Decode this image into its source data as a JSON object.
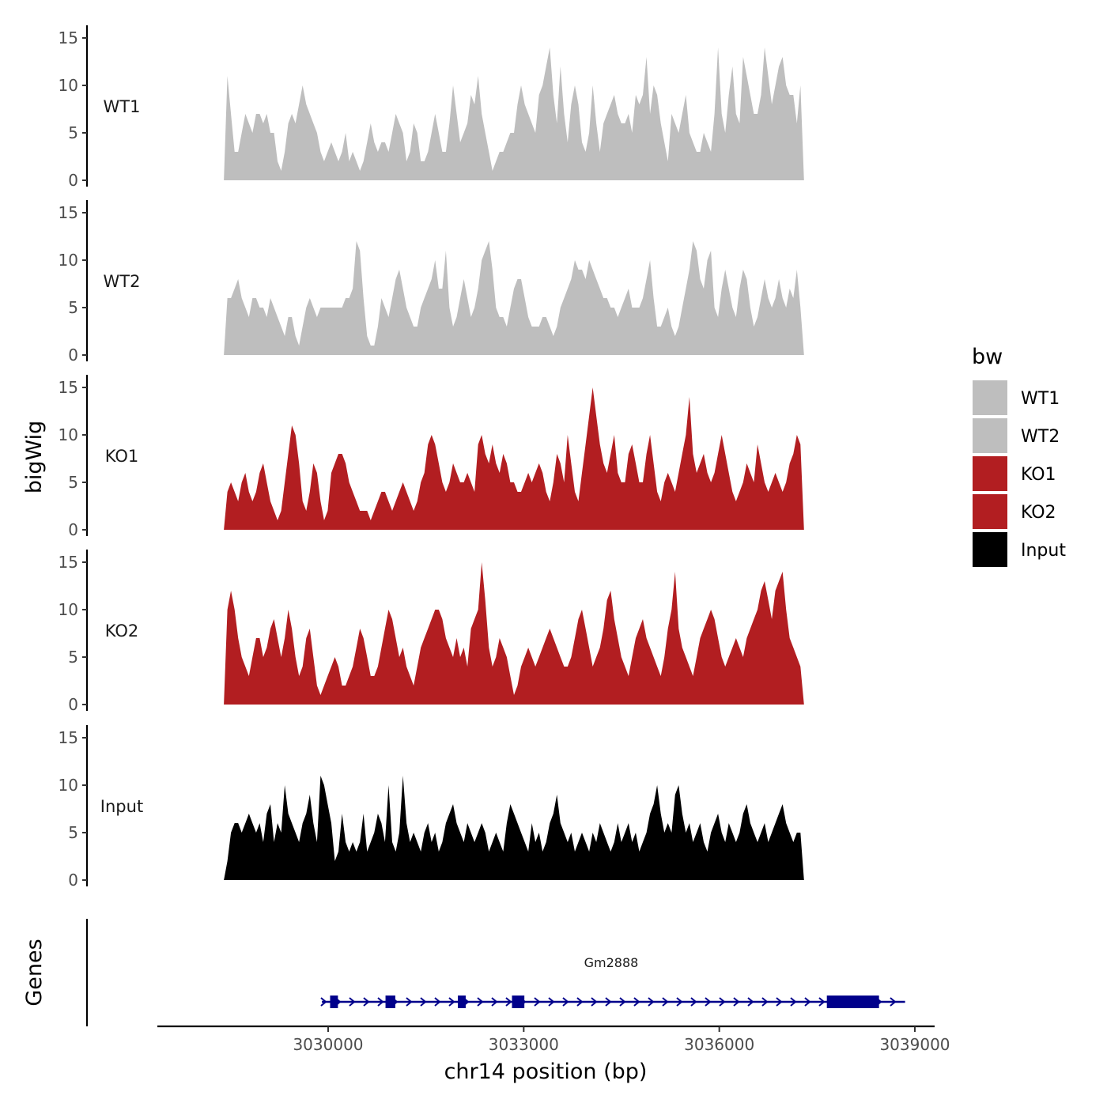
{
  "chart_data": [
    {
      "type": "area",
      "title": "",
      "ylabel": "bigWig",
      "xlabel": "chr14 position (bp)",
      "ylim": [
        0,
        16
      ],
      "y_ticks": [
        0,
        5,
        10,
        15
      ],
      "x_start": 3028400,
      "x_end": 3037300,
      "legend_title": "bw",
      "legend_position": "right",
      "series": [
        {
          "name": "WT1",
          "color": "#bebebe",
          "values": [
            0,
            11,
            7,
            3,
            3,
            5,
            7,
            6,
            5,
            7,
            7,
            6,
            7,
            5,
            5,
            2,
            1,
            3,
            6,
            7,
            6,
            8,
            10,
            8,
            7,
            6,
            5,
            3,
            2,
            3,
            4,
            3,
            2,
            3,
            5,
            2,
            3,
            2,
            1,
            2,
            4,
            6,
            4,
            3,
            4,
            4,
            3,
            5,
            7,
            6,
            5,
            2,
            3,
            6,
            5,
            2,
            2,
            3,
            5,
            7,
            5,
            3,
            3,
            6,
            10,
            7,
            4,
            5,
            6,
            9,
            8,
            11,
            7,
            5,
            3,
            1,
            2,
            3,
            3,
            4,
            5,
            5,
            8,
            10,
            8,
            7,
            6,
            5,
            9,
            10,
            12,
            14,
            9,
            6,
            12,
            7,
            4,
            8,
            10,
            8,
            4,
            3,
            5,
            10,
            6,
            3,
            6,
            7,
            8,
            9,
            7,
            6,
            6,
            7,
            5,
            9,
            8,
            9,
            13,
            7,
            10,
            9,
            6,
            4,
            2,
            7,
            6,
            5,
            7,
            9,
            5,
            4,
            3,
            3,
            5,
            4,
            3,
            7,
            14,
            7,
            5,
            9,
            12,
            7,
            6,
            13,
            11,
            9,
            7,
            7,
            9,
            14,
            11,
            8,
            10,
            12,
            13,
            10,
            9,
            9,
            6,
            10,
            0
          ]
        },
        {
          "name": "WT2",
          "color": "#bebebe",
          "values": [
            0,
            6,
            6,
            7,
            8,
            6,
            5,
            4,
            6,
            6,
            5,
            5,
            4,
            6,
            5,
            4,
            3,
            2,
            4,
            4,
            2,
            1,
            3,
            5,
            6,
            5,
            4,
            5,
            5,
            5,
            5,
            5,
            5,
            5,
            6,
            6,
            7,
            12,
            11,
            6,
            2,
            1,
            1,
            3,
            6,
            5,
            4,
            6,
            8,
            9,
            7,
            5,
            4,
            3,
            3,
            5,
            6,
            7,
            8,
            10,
            7,
            7,
            11,
            5,
            3,
            4,
            6,
            8,
            6,
            4,
            5,
            7,
            10,
            11,
            12,
            9,
            5,
            4,
            4,
            3,
            5,
            7,
            8,
            8,
            6,
            4,
            3,
            3,
            3,
            4,
            4,
            3,
            2,
            3,
            5,
            6,
            7,
            8,
            10,
            9,
            9,
            8,
            10,
            9,
            8,
            7,
            6,
            6,
            5,
            5,
            4,
            5,
            6,
            7,
            5,
            5,
            5,
            6,
            8,
            10,
            6,
            3,
            3,
            4,
            5,
            3,
            2,
            3,
            5,
            7,
            9,
            12,
            11,
            8,
            7,
            10,
            11,
            5,
            4,
            7,
            9,
            7,
            5,
            4,
            7,
            9,
            8,
            5,
            3,
            4,
            6,
            8,
            6,
            5,
            6,
            8,
            6,
            5,
            7,
            6,
            9,
            5,
            0
          ]
        },
        {
          "name": "KO1",
          "color": "#b21e21",
          "values": [
            0,
            4,
            5,
            4,
            3,
            5,
            6,
            4,
            3,
            4,
            6,
            7,
            5,
            3,
            2,
            1,
            2,
            5,
            8,
            11,
            10,
            7,
            3,
            2,
            4,
            7,
            6,
            3,
            1,
            2,
            6,
            7,
            8,
            8,
            7,
            5,
            4,
            3,
            2,
            2,
            2,
            1,
            2,
            3,
            4,
            4,
            3,
            2,
            3,
            4,
            5,
            4,
            3,
            2,
            3,
            5,
            6,
            9,
            10,
            9,
            7,
            5,
            4,
            5,
            7,
            6,
            5,
            5,
            6,
            5,
            4,
            9,
            10,
            8,
            7,
            9,
            7,
            6,
            8,
            7,
            5,
            5,
            4,
            4,
            5,
            6,
            5,
            6,
            7,
            6,
            4,
            3,
            5,
            8,
            7,
            5,
            10,
            7,
            4,
            3,
            6,
            9,
            12,
            15,
            12,
            9,
            7,
            6,
            8,
            10,
            6,
            5,
            5,
            8,
            9,
            7,
            5,
            5,
            8,
            10,
            7,
            4,
            3,
            5,
            6,
            5,
            4,
            6,
            8,
            10,
            14,
            8,
            6,
            7,
            8,
            6,
            5,
            6,
            8,
            10,
            8,
            6,
            4,
            3,
            4,
            5,
            7,
            6,
            5,
            9,
            7,
            5,
            4,
            5,
            6,
            5,
            4,
            5,
            7,
            8,
            10,
            9,
            0
          ]
        },
        {
          "name": "KO2",
          "color": "#b21e21",
          "values": [
            0,
            10,
            12,
            10,
            7,
            5,
            4,
            3,
            5,
            7,
            7,
            5,
            6,
            8,
            9,
            7,
            5,
            7,
            10,
            8,
            5,
            3,
            4,
            7,
            8,
            5,
            2,
            1,
            2,
            3,
            4,
            5,
            4,
            2,
            2,
            3,
            4,
            6,
            8,
            7,
            5,
            3,
            3,
            4,
            6,
            8,
            10,
            9,
            7,
            5,
            6,
            4,
            3,
            2,
            4,
            6,
            7,
            8,
            9,
            10,
            10,
            9,
            7,
            6,
            5,
            7,
            5,
            6,
            4,
            8,
            9,
            10,
            15,
            11,
            6,
            4,
            5,
            7,
            6,
            5,
            3,
            1,
            2,
            4,
            5,
            6,
            5,
            4,
            5,
            6,
            7,
            8,
            7,
            6,
            5,
            4,
            4,
            5,
            7,
            9,
            10,
            8,
            6,
            4,
            5,
            6,
            8,
            11,
            12,
            9,
            7,
            5,
            4,
            3,
            5,
            7,
            8,
            9,
            7,
            6,
            5,
            4,
            3,
            5,
            8,
            10,
            14,
            8,
            6,
            5,
            4,
            3,
            5,
            7,
            8,
            9,
            10,
            9,
            7,
            5,
            4,
            5,
            6,
            7,
            6,
            5,
            7,
            8,
            9,
            10,
            12,
            13,
            11,
            9,
            12,
            13,
            14,
            10,
            7,
            6,
            5,
            4,
            0
          ]
        },
        {
          "name": "Input",
          "color": "#000000",
          "values": [
            0,
            2,
            5,
            6,
            6,
            5,
            6,
            7,
            6,
            5,
            6,
            4,
            7,
            8,
            4,
            6,
            5,
            10,
            7,
            6,
            5,
            4,
            6,
            7,
            9,
            6,
            4,
            11,
            10,
            8,
            6,
            2,
            3,
            7,
            4,
            3,
            4,
            3,
            4,
            7,
            3,
            4,
            5,
            7,
            6,
            4,
            10,
            4,
            3,
            5,
            11,
            6,
            4,
            5,
            4,
            3,
            5,
            6,
            4,
            5,
            3,
            4,
            6,
            7,
            8,
            6,
            5,
            4,
            6,
            5,
            4,
            5,
            6,
            5,
            3,
            4,
            5,
            4,
            3,
            6,
            8,
            7,
            6,
            5,
            4,
            3,
            6,
            4,
            5,
            3,
            4,
            6,
            7,
            9,
            6,
            5,
            4,
            5,
            3,
            4,
            5,
            4,
            3,
            5,
            4,
            6,
            5,
            4,
            3,
            4,
            6,
            4,
            5,
            6,
            4,
            5,
            3,
            4,
            5,
            7,
            8,
            10,
            7,
            5,
            6,
            5,
            9,
            10,
            7,
            5,
            6,
            4,
            5,
            6,
            4,
            3,
            5,
            6,
            7,
            5,
            4,
            6,
            5,
            4,
            5,
            7,
            8,
            6,
            5,
            4,
            5,
            6,
            4,
            5,
            6,
            7,
            8,
            6,
            5,
            4,
            5,
            5,
            0
          ]
        }
      ]
    },
    {
      "type": "gene-track",
      "ylabel": "Genes",
      "xlabel": "chr14 position (bp)",
      "xlim": [
        3027200,
        3039250
      ],
      "x_ticks": [
        3030000,
        3033000,
        3036000,
        3039000
      ],
      "x_tick_labels": [
        "3030000",
        "3033000",
        "3036000",
        "3039000"
      ],
      "gene": {
        "name": "Gm2888",
        "strand": "+",
        "color": "#00008b",
        "start": 3030000,
        "end": 3038850,
        "exons": [
          [
            3030030,
            3030150
          ],
          [
            3030880,
            3031030
          ],
          [
            3031990,
            3032110
          ],
          [
            3032820,
            3033010
          ],
          [
            3037650,
            3038450
          ]
        ]
      }
    }
  ]
}
